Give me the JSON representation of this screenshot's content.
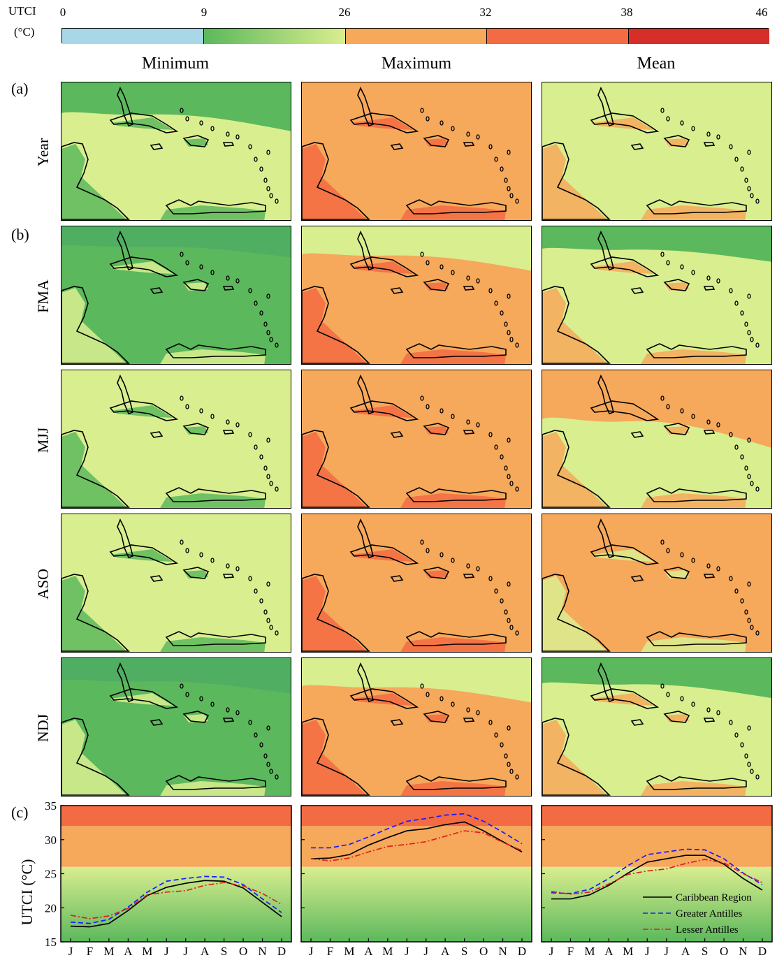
{
  "colorbar": {
    "label_line1": "UTCI",
    "label_line2": "(°C)",
    "ticks": [
      "0",
      "9",
      "26",
      "32",
      "38",
      "46"
    ],
    "colors": [
      "#a8d8e8",
      "#5cb85c",
      "#d9ee8f",
      "#f6a85b",
      "#f36b43",
      "#d62f2a"
    ]
  },
  "columns": [
    "Minimum",
    "Maximum",
    "Mean"
  ],
  "panel_labels": [
    "(a)",
    "(b)",
    "(c)"
  ],
  "rows": [
    "Year",
    "FMA",
    "MJJ",
    "ASO",
    "NDJ"
  ],
  "colors": {
    "cold_stress": "#a8d8e8",
    "no_stress_low": "#5cb85c",
    "no_stress_high": "#d9ee8f",
    "moderate": "#f6a85b",
    "strong": "#f36b43",
    "very_strong": "#d62f2a"
  },
  "chart_data": [
    {
      "type": "line",
      "panel": "Minimum",
      "x": [
        "J",
        "F",
        "M",
        "A",
        "M",
        "J",
        "J",
        "A",
        "S",
        "O",
        "N",
        "D"
      ],
      "ylabel": "UTCI (°C)",
      "ylim": [
        15,
        35
      ],
      "yticks": [
        15,
        20,
        25,
        30,
        35
      ],
      "bands": [
        [
          15,
          26
        ],
        [
          26,
          32
        ],
        [
          32,
          35
        ]
      ],
      "series": [
        {
          "name": "Caribbean Region",
          "values": [
            17.3,
            17.2,
            17.7,
            19.6,
            21.8,
            23.0,
            23.6,
            24.0,
            23.9,
            22.9,
            20.8,
            18.7
          ]
        },
        {
          "name": "Greater Antilles",
          "values": [
            17.9,
            17.7,
            18.3,
            20.1,
            22.3,
            23.9,
            24.3,
            24.6,
            24.5,
            23.4,
            21.3,
            19.3
          ]
        },
        {
          "name": "Lesser Antilles",
          "values": [
            18.9,
            18.4,
            18.8,
            19.9,
            21.9,
            22.3,
            22.5,
            23.3,
            23.7,
            23.2,
            22.1,
            20.5
          ]
        }
      ]
    },
    {
      "type": "line",
      "panel": "Maximum",
      "x": [
        "J",
        "F",
        "M",
        "A",
        "M",
        "J",
        "J",
        "A",
        "S",
        "O",
        "N",
        "D"
      ],
      "ylim": [
        15,
        35
      ],
      "bands": [
        [
          15,
          26
        ],
        [
          26,
          32
        ],
        [
          32,
          35
        ]
      ],
      "series": [
        {
          "name": "Caribbean Region",
          "values": [
            27.2,
            27.3,
            27.8,
            29.2,
            30.3,
            31.3,
            31.6,
            32.2,
            32.6,
            31.3,
            29.7,
            28.2
          ]
        },
        {
          "name": "Greater Antilles",
          "values": [
            28.8,
            28.8,
            29.3,
            30.4,
            31.6,
            32.7,
            33.1,
            33.6,
            33.8,
            32.7,
            31.1,
            29.4
          ]
        },
        {
          "name": "Lesser Antilles",
          "values": [
            27.2,
            26.9,
            27.3,
            28.2,
            29.0,
            29.3,
            29.7,
            30.5,
            31.3,
            31.0,
            29.6,
            28.4
          ]
        }
      ]
    },
    {
      "type": "line",
      "panel": "Mean",
      "x": [
        "J",
        "F",
        "M",
        "A",
        "M",
        "J",
        "J",
        "A",
        "S",
        "O",
        "N",
        "D"
      ],
      "ylim": [
        15,
        35
      ],
      "bands": [
        [
          15,
          26
        ],
        [
          26,
          32
        ],
        [
          32,
          35
        ]
      ],
      "legend": "bottom-right",
      "series": [
        {
          "name": "Caribbean Region",
          "values": [
            21.3,
            21.3,
            21.9,
            23.3,
            25.1,
            26.7,
            27.2,
            27.7,
            27.7,
            26.4,
            24.3,
            22.6
          ]
        },
        {
          "name": "Greater Antilles",
          "values": [
            22.2,
            22.1,
            22.7,
            24.3,
            26.2,
            27.8,
            28.2,
            28.6,
            28.5,
            27.2,
            25.1,
            23.4
          ]
        },
        {
          "name": "Lesser Antilles",
          "values": [
            22.4,
            22.0,
            22.3,
            23.5,
            24.9,
            25.4,
            25.7,
            26.5,
            27.1,
            26.6,
            25.0,
            23.7
          ]
        }
      ]
    }
  ]
}
